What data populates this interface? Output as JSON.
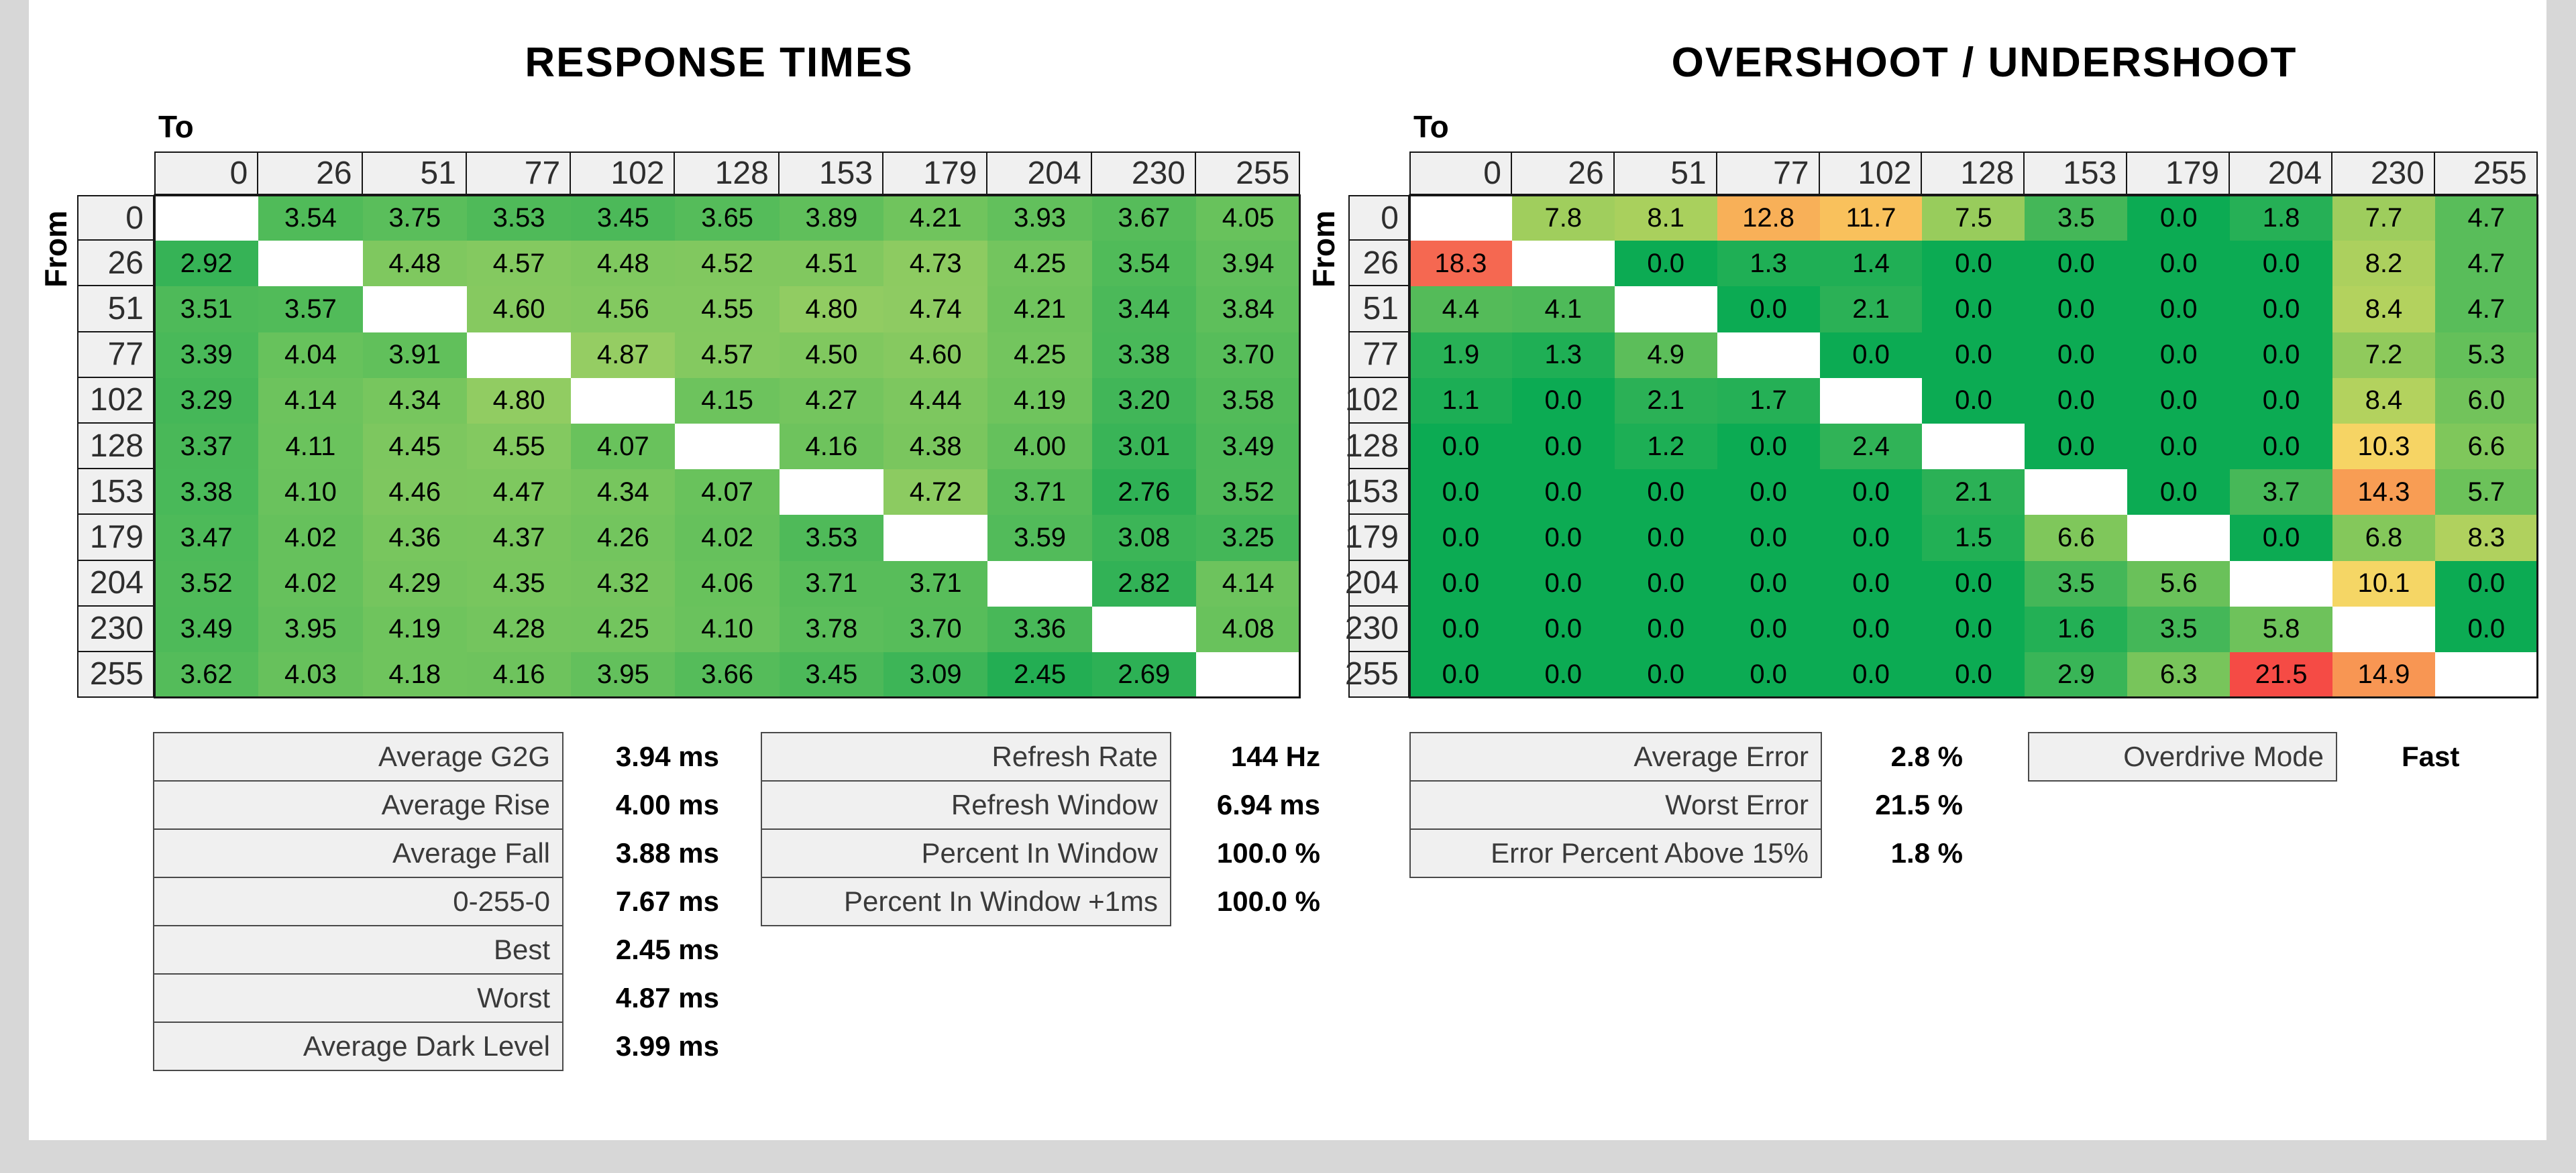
{
  "window": {
    "kind": "response-time-test-results"
  },
  "colors": {
    "page_background": "#d7d7d7",
    "panel_background": "#ffffff",
    "header_cell_background": "#f0f0f0",
    "summary_cell_background": "#f0f0f0",
    "diagonal_cell": "#ffffff",
    "grid_border": "#161616",
    "summary_border": "#4a4a4a",
    "value_text": "#000000",
    "label_text": "#3a3a3a",
    "times_scale": [
      [
        2.45,
        "#23ae53"
      ],
      [
        3.0,
        "#39b457"
      ],
      [
        3.5,
        "#4eba59"
      ],
      [
        4.0,
        "#65c15c"
      ],
      [
        4.5,
        "#80c85f"
      ],
      [
        4.87,
        "#95cd63"
      ]
    ],
    "overshoot_scale": [
      [
        0,
        "#0cab53"
      ],
      [
        2,
        "#29b156"
      ],
      [
        3.5,
        "#44b758"
      ],
      [
        5,
        "#5ebe5a"
      ],
      [
        6.5,
        "#7cc65b"
      ],
      [
        8,
        "#a6cf5d"
      ],
      [
        9,
        "#c6d660"
      ],
      [
        10,
        "#f4d766"
      ],
      [
        11,
        "#f9cd5e"
      ],
      [
        12.5,
        "#f8b459"
      ],
      [
        14,
        "#f8a055"
      ],
      [
        16,
        "#f78a50"
      ],
      [
        18,
        "#f56b52"
      ],
      [
        21.5,
        "#f54b45"
      ]
    ]
  },
  "chart_data": [
    {
      "type": "heatmap",
      "title": "RESPONSE TIMES",
      "unit": "ms",
      "decimals": 2,
      "x_label": "To",
      "y_label": "From",
      "columns": [
        0,
        26,
        51,
        77,
        102,
        128,
        153,
        179,
        204,
        230,
        255
      ],
      "rows": [
        0,
        26,
        51,
        77,
        102,
        128,
        153,
        179,
        204,
        230,
        255
      ],
      "values": [
        [
          null,
          3.54,
          3.75,
          3.53,
          3.45,
          3.65,
          3.89,
          4.21,
          3.93,
          3.67,
          4.05
        ],
        [
          2.92,
          null,
          4.48,
          4.57,
          4.48,
          4.52,
          4.51,
          4.73,
          4.25,
          3.54,
          3.94
        ],
        [
          3.51,
          3.57,
          null,
          4.6,
          4.56,
          4.55,
          4.8,
          4.74,
          4.21,
          3.44,
          3.84
        ],
        [
          3.39,
          4.04,
          3.91,
          null,
          4.87,
          4.57,
          4.5,
          4.6,
          4.25,
          3.38,
          3.7
        ],
        [
          3.29,
          4.14,
          4.34,
          4.8,
          null,
          4.15,
          4.27,
          4.44,
          4.19,
          3.2,
          3.58
        ],
        [
          3.37,
          4.11,
          4.45,
          4.55,
          4.07,
          null,
          4.16,
          4.38,
          4.0,
          3.01,
          3.49
        ],
        [
          3.38,
          4.1,
          4.46,
          4.47,
          4.34,
          4.07,
          null,
          4.72,
          3.71,
          2.76,
          3.52
        ],
        [
          3.47,
          4.02,
          4.36,
          4.37,
          4.26,
          4.02,
          3.53,
          null,
          3.59,
          3.08,
          3.25
        ],
        [
          3.52,
          4.02,
          4.29,
          4.35,
          4.32,
          4.06,
          3.71,
          3.71,
          null,
          2.82,
          4.14
        ],
        [
          3.49,
          3.95,
          4.19,
          4.28,
          4.25,
          4.1,
          3.78,
          3.7,
          3.36,
          null,
          4.08
        ],
        [
          3.62,
          4.03,
          4.18,
          4.16,
          3.95,
          3.66,
          3.45,
          3.09,
          2.45,
          2.69,
          null
        ]
      ]
    },
    {
      "type": "heatmap",
      "title": "OVERSHOOT / UNDERSHOOT",
      "unit": "%",
      "decimals": 1,
      "x_label": "To",
      "y_label": "From",
      "columns": [
        0,
        26,
        51,
        77,
        102,
        128,
        153,
        179,
        204,
        230,
        255
      ],
      "rows": [
        0,
        26,
        51,
        77,
        102,
        128,
        153,
        179,
        204,
        230,
        255
      ],
      "values": [
        [
          null,
          7.8,
          8.1,
          12.8,
          11.7,
          7.5,
          3.5,
          0.0,
          1.8,
          7.7,
          4.7
        ],
        [
          18.3,
          null,
          0.0,
          1.3,
          1.4,
          0.0,
          0.0,
          0.0,
          0.0,
          8.2,
          4.7
        ],
        [
          4.4,
          4.1,
          null,
          0.0,
          2.1,
          0.0,
          0.0,
          0.0,
          0.0,
          8.4,
          4.7
        ],
        [
          1.9,
          1.3,
          4.9,
          null,
          0.0,
          0.0,
          0.0,
          0.0,
          0.0,
          7.2,
          5.3
        ],
        [
          1.1,
          0.0,
          2.1,
          1.7,
          null,
          0.0,
          0.0,
          0.0,
          0.0,
          8.4,
          6.0
        ],
        [
          0.0,
          0.0,
          1.2,
          0.0,
          2.4,
          null,
          0.0,
          0.0,
          0.0,
          10.3,
          6.6
        ],
        [
          0.0,
          0.0,
          0.0,
          0.0,
          0.0,
          2.1,
          null,
          0.0,
          3.7,
          14.3,
          5.7
        ],
        [
          0.0,
          0.0,
          0.0,
          0.0,
          0.0,
          1.5,
          6.6,
          null,
          0.0,
          6.8,
          8.3
        ],
        [
          0.0,
          0.0,
          0.0,
          0.0,
          0.0,
          0.0,
          3.5,
          5.6,
          null,
          10.1,
          0.0
        ],
        [
          0.0,
          0.0,
          0.0,
          0.0,
          0.0,
          0.0,
          1.6,
          3.5,
          5.8,
          null,
          0.0
        ],
        [
          0.0,
          0.0,
          0.0,
          0.0,
          0.0,
          0.0,
          2.9,
          6.3,
          21.5,
          14.9,
          null
        ]
      ]
    },
    {
      "type": "table",
      "name": "response-time-summary",
      "rows": [
        {
          "label": "Average G2G",
          "value": "3.94 ms"
        },
        {
          "label": "Average Rise",
          "value": "4.00 ms"
        },
        {
          "label": "Average Fall",
          "value": "3.88 ms"
        },
        {
          "label": "0-255-0",
          "value": "7.67 ms"
        },
        {
          "label": "Best",
          "value": "2.45 ms"
        },
        {
          "label": "Worst",
          "value": "4.87 ms"
        },
        {
          "label": "Average Dark Level",
          "value": "3.99 ms"
        }
      ]
    },
    {
      "type": "table",
      "name": "refresh-summary",
      "rows": [
        {
          "label": "Refresh Rate",
          "value": "144 Hz"
        },
        {
          "label": "Refresh Window",
          "value": "6.94 ms"
        },
        {
          "label": "Percent In Window",
          "value": "100.0 %"
        },
        {
          "label": "Percent In Window +1ms",
          "value": "100.0 %"
        }
      ]
    },
    {
      "type": "table",
      "name": "error-summary",
      "rows": [
        {
          "label": "Average Error",
          "value": "2.8 %"
        },
        {
          "label": "Worst Error",
          "value": "21.5 %"
        },
        {
          "label": "Error Percent Above 15%",
          "value": "1.8 %"
        }
      ]
    },
    {
      "type": "table",
      "name": "overdrive-mode",
      "rows": [
        {
          "label": "Overdrive Mode",
          "value": "Fast"
        }
      ]
    }
  ]
}
